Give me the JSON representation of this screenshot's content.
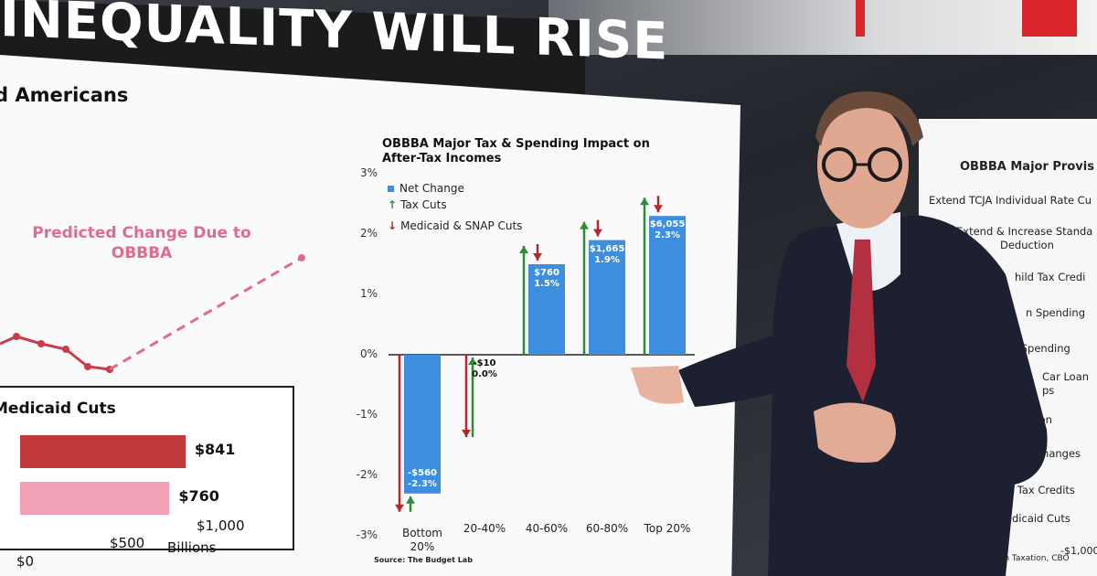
{
  "headline": "INEQUALITY WILL RISE",
  "left_panel": {
    "title": "d Americans",
    "predicted_label_line1": "Predicted Change Due to",
    "predicted_label_line2": "OBBBA",
    "medicaid": {
      "title": "Medicaid Cuts",
      "bars": [
        {
          "value": 841,
          "label": "$841",
          "color": "#c03a3c"
        },
        {
          "value": 760,
          "label": "$760",
          "color": "#f2a0b6"
        }
      ],
      "axis_ticks": [
        "$0",
        "$500",
        "$1,000"
      ],
      "axis_unit": "Billions"
    }
  },
  "chart_data": {
    "type": "bar",
    "title_line1": "OBBBA Major Tax & Spending Impact on",
    "title_line2": "After-Tax Incomes",
    "legend": [
      "Net Change",
      "Tax Cuts",
      "Medicaid & SNAP Cuts"
    ],
    "categories": [
      "Bottom 20%",
      "20-40%",
      "40-60%",
      "60-80%",
      "Top 20%"
    ],
    "y_ticks": [
      "3%",
      "2%",
      "1%",
      "0%",
      "-1%",
      "-2%",
      "-3%"
    ],
    "ylim": [
      -3,
      3
    ],
    "series": [
      {
        "name": "Net Change",
        "values": [
          -2.3,
          0.0,
          1.5,
          1.9,
          2.3
        ]
      }
    ],
    "dollar_labels": [
      "-$560",
      "-$10",
      "$760",
      "$1,665",
      "$6,055"
    ],
    "pct_labels": [
      "-2.3%",
      "0.0%",
      "1.5%",
      "1.9%",
      "2.3%"
    ],
    "source": "Source: The Budget Lab",
    "colors": {
      "net": "#3d8ede",
      "tax_cuts": "#2e8b3a",
      "cuts": "#b3282e"
    }
  },
  "right_panel": {
    "title": "OBBBA Major Provis",
    "rows": [
      "Extend TCJA Individual Rate Cu",
      "Extend & Increase Standa",
      "Deduction",
      "hild Tax Credi",
      "n Spending",
      "e Spending",
      "Car Loan",
      "ps",
      "duction",
      "Changes",
      "ase Out IRA Tax Credits",
      "Medicaid Cuts"
    ],
    "footer": "Committee on Taxation, CBO",
    "axis_tick": "-$1,000"
  }
}
